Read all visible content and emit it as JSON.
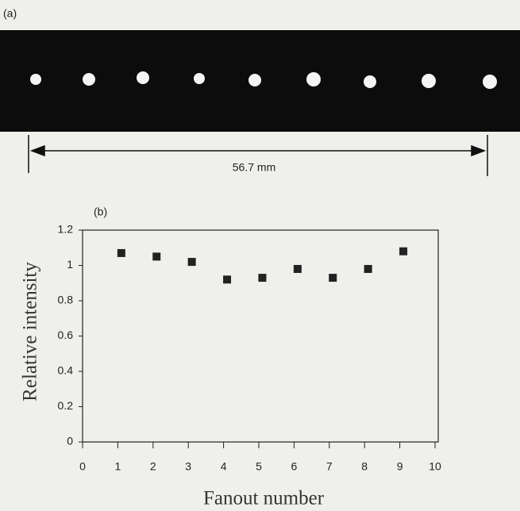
{
  "panel_a": {
    "label": "(a)",
    "dimension": "56.7 mm"
  },
  "chart_data": {
    "type": "scatter",
    "annotation": "(b)",
    "x_label": "Fanout number",
    "y_label": "Relative intensity",
    "x": [
      1.1,
      2.1,
      3.1,
      4.1,
      5.1,
      6.1,
      7.1,
      8.1,
      9.1
    ],
    "values": [
      1.07,
      1.05,
      1.02,
      0.92,
      0.93,
      0.98,
      0.93,
      0.98,
      1.08
    ],
    "color": "#222222",
    "marker": "square",
    "xlim": [
      0,
      10
    ],
    "xticks": [
      0,
      1,
      2,
      3,
      4,
      5,
      6,
      7,
      8,
      9,
      10
    ],
    "ylim": [
      0,
      1.2
    ],
    "yticks": [
      0,
      0.2,
      0.4,
      0.6,
      0.8,
      1,
      1.2
    ],
    "grid": false
  }
}
